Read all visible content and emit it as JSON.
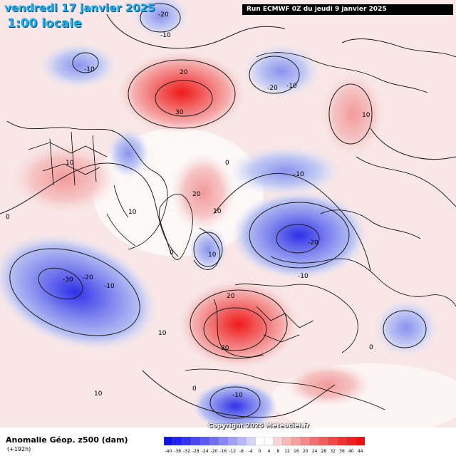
{
  "title": {
    "date": "vendredi 17 janvier 2025",
    "time": "1:00 locale",
    "run": "Run ECMWF 0Z du jeudi 9 janvier 2025"
  },
  "footer": {
    "field": "Anomalie Géop. z500 (dam)",
    "lead": "(+192h)",
    "copyright": "Copyright 2025 Meteociel.fr"
  },
  "colors": {
    "negative_strong": "#1010e0",
    "negative_light": "#c8d2f4",
    "positive_light": "#f8d4d4",
    "positive_strong": "#e01010",
    "coast": "#000000"
  },
  "scale": {
    "ticks": [
      "-40",
      "-36",
      "-32",
      "-28",
      "-24",
      "-20",
      "-16",
      "-12",
      "-8",
      "-4",
      "0",
      "4",
      "8",
      "12",
      "16",
      "20",
      "24",
      "28",
      "32",
      "36",
      "40",
      "44"
    ],
    "colors": [
      "#1010e8",
      "#2020f0",
      "#3434f0",
      "#4848f0",
      "#5c5cf2",
      "#7070f2",
      "#8888f4",
      "#a0a0f6",
      "#b8b8f8",
      "#d4d4fa",
      "#ffffff",
      "#ffffff",
      "#fad4d4",
      "#f8b8b8",
      "#f6a0a0",
      "#f48888",
      "#f27070",
      "#f25c5c",
      "#f04848",
      "#f03434",
      "#f02020",
      "#e81010"
    ]
  },
  "map": {
    "contour_labels": [
      {
        "text": "-20"
      },
      {
        "text": "-10"
      },
      {
        "text": "-10"
      },
      {
        "text": "20"
      },
      {
        "text": "30"
      },
      {
        "text": "-20"
      },
      {
        "text": "-10"
      },
      {
        "text": "10"
      },
      {
        "text": "10"
      },
      {
        "text": "0"
      },
      {
        "text": "-10"
      },
      {
        "text": "20"
      },
      {
        "text": "10"
      },
      {
        "text": "10"
      },
      {
        "text": "0"
      },
      {
        "text": "-20"
      },
      {
        "text": "-10"
      },
      {
        "text": "10"
      },
      {
        "text": "0"
      },
      {
        "text": "-30"
      },
      {
        "text": "-20"
      },
      {
        "text": "-10"
      },
      {
        "text": "20"
      },
      {
        "text": "30"
      },
      {
        "text": "10"
      },
      {
        "text": "0"
      },
      {
        "text": "-10"
      },
      {
        "text": "10"
      },
      {
        "text": "0"
      }
    ]
  }
}
